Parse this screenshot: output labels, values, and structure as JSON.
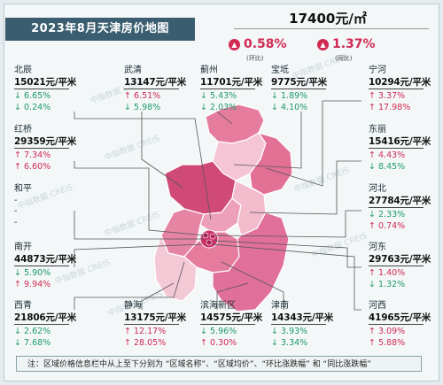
{
  "title": "2023年8月天津房价地图",
  "city": {
    "avg_price": "17400元/㎡",
    "mom": {
      "value": "0.58%",
      "direction": "up",
      "caption": "(环比)"
    },
    "yoy": {
      "value": "1.37%",
      "direction": "up",
      "caption": "(同比)"
    }
  },
  "watermark": "中指数据 CREIS",
  "districts": [
    {
      "name": "北辰",
      "price": "15021元/平米",
      "mom": {
        "dir": "down",
        "arrow": "↓",
        "value": "6.65%"
      },
      "yoy": {
        "dir": "down",
        "arrow": "↓",
        "value": "0.24%"
      }
    },
    {
      "name": "武清",
      "price": "13147元/平米",
      "mom": {
        "dir": "up",
        "arrow": "↑",
        "value": "6.51%"
      },
      "yoy": {
        "dir": "down",
        "arrow": "↓",
        "value": "5.98%"
      }
    },
    {
      "name": "蓟州",
      "price": "11701元/平米",
      "mom": {
        "dir": "down",
        "arrow": "↓",
        "value": "5.43%"
      },
      "yoy": {
        "dir": "down",
        "arrow": "↓",
        "value": "2.03%"
      }
    },
    {
      "name": "宝坻",
      "price": "9775元/平米",
      "mom": {
        "dir": "down",
        "arrow": "↓",
        "value": "1.89%"
      },
      "yoy": {
        "dir": "down",
        "arrow": "↓",
        "value": "4.10%"
      }
    },
    {
      "name": "宁河",
      "price": "10294元/平米",
      "mom": {
        "dir": "up",
        "arrow": "↑",
        "value": "3.37%"
      },
      "yoy": {
        "dir": "up",
        "arrow": "↑",
        "value": "17.98%"
      }
    },
    {
      "name": "红桥",
      "price": "29359元/平米",
      "mom": {
        "dir": "up",
        "arrow": "↑",
        "value": "7.34%"
      },
      "yoy": {
        "dir": "up",
        "arrow": "↑",
        "value": "6.60%"
      }
    },
    {
      "name": "东丽",
      "price": "15416元/平米",
      "mom": {
        "dir": "up",
        "arrow": "↑",
        "value": "4.43%"
      },
      "yoy": {
        "dir": "down",
        "arrow": "↓",
        "value": "8.45%"
      }
    },
    {
      "name": "和平",
      "price": "-",
      "mom": {
        "dir": "none",
        "arrow": "",
        "value": "-"
      },
      "yoy": {
        "dir": "none",
        "arrow": "",
        "value": "-"
      }
    },
    {
      "name": "河北",
      "price": "27784元/平米",
      "mom": {
        "dir": "down",
        "arrow": "↓",
        "value": "2.33%"
      },
      "yoy": {
        "dir": "up",
        "arrow": "↑",
        "value": "0.74%"
      }
    },
    {
      "name": "南开",
      "price": "44873元/平米",
      "mom": {
        "dir": "down",
        "arrow": "↓",
        "value": "5.90%"
      },
      "yoy": {
        "dir": "up",
        "arrow": "↑",
        "value": "9.94%"
      }
    },
    {
      "name": "河东",
      "price": "29763元/平米",
      "mom": {
        "dir": "up",
        "arrow": "↑",
        "value": "1.40%"
      },
      "yoy": {
        "dir": "down",
        "arrow": "↓",
        "value": "1.32%"
      }
    },
    {
      "name": "西青",
      "price": "21806元/平米",
      "mom": {
        "dir": "down",
        "arrow": "↓",
        "value": "2.62%"
      },
      "yoy": {
        "dir": "down",
        "arrow": "↓",
        "value": "7.68%"
      }
    },
    {
      "name": "静海",
      "price": "13175元/平米",
      "mom": {
        "dir": "up",
        "arrow": "↑",
        "value": "12.17%"
      },
      "yoy": {
        "dir": "up",
        "arrow": "↑",
        "value": "28.05%"
      }
    },
    {
      "name": "滨海新区",
      "price": "14575元/平米",
      "mom": {
        "dir": "down",
        "arrow": "↓",
        "value": "5.96%"
      },
      "yoy": {
        "dir": "up",
        "arrow": "↑",
        "value": "0.30%"
      }
    },
    {
      "name": "津南",
      "price": "14343元/平米",
      "mom": {
        "dir": "down",
        "arrow": "↓",
        "value": "3.93%"
      },
      "yoy": {
        "dir": "down",
        "arrow": "↓",
        "value": "3.34%"
      }
    },
    {
      "name": "河西",
      "price": "41965元/平米",
      "mom": {
        "dir": "up",
        "arrow": "↑",
        "value": "3.09%"
      },
      "yoy": {
        "dir": "up",
        "arrow": "↑",
        "value": "5.88%"
      }
    }
  ],
  "footnote": "注：区域价格信息栏中从上至下分别为 “区域名称”、“区域均价”、“环比涨跌幅” 和 “同比涨跌幅”",
  "colors": {
    "title_bg": "#3a5e70",
    "up": "#d02a52",
    "down": "#1f9a6b"
  }
}
